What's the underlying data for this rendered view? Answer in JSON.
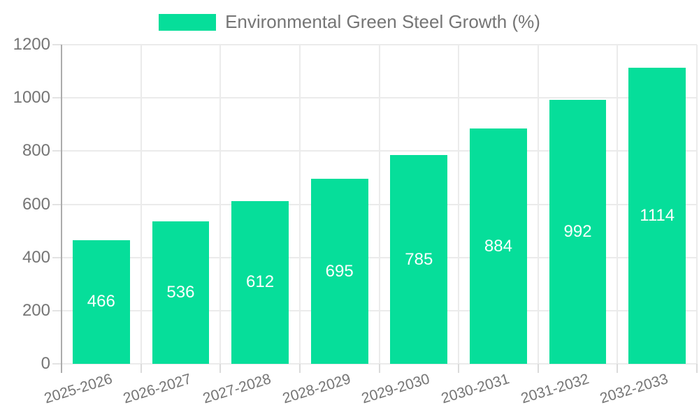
{
  "chart_data": {
    "type": "bar",
    "series_name": "Environmental Green Steel Growth (%)",
    "categories": [
      "2025-2026",
      "2026-2027",
      "2027-2028",
      "2028-2029",
      "2029-2030",
      "2030-2031",
      "2031-2032",
      "2032-2033"
    ],
    "values": [
      466,
      536,
      612,
      695,
      785,
      884,
      992,
      1114
    ],
    "value_labels": [
      "466",
      "536",
      "612",
      "695",
      "785",
      "884",
      "992",
      "1114"
    ],
    "ylim": [
      0,
      1200
    ],
    "ytick_step": 200,
    "ytick_labels": [
      "0",
      "200",
      "400",
      "600",
      "800",
      "1000",
      "1200"
    ],
    "legend_position": "top",
    "grid": true,
    "bar_color": "#06DE9A",
    "value_label_color": "#FFFFFF",
    "text_color": "#757575"
  }
}
